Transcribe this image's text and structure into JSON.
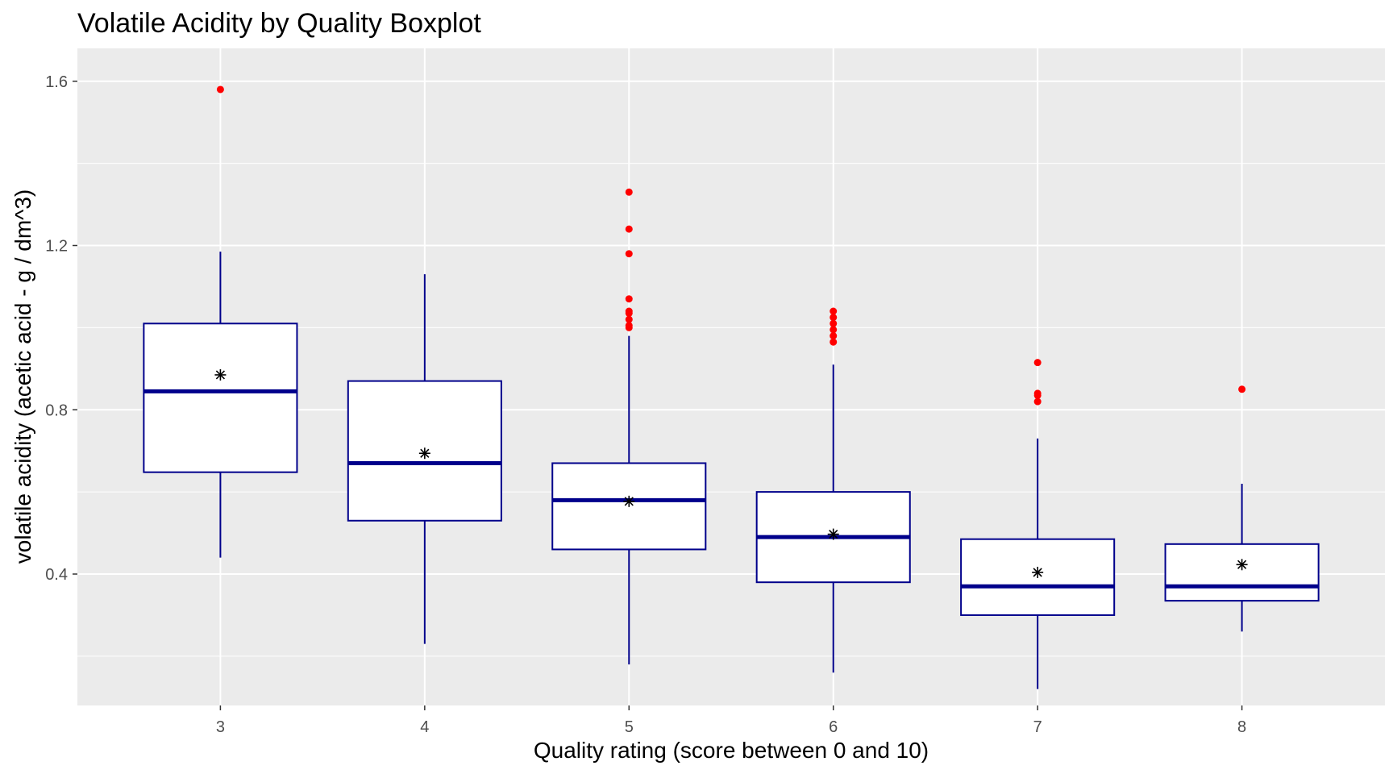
{
  "chart_data": {
    "type": "boxplot",
    "title": "Volatile Acidity by Quality Boxplot",
    "xlabel": "Quality rating (score between 0 and 10)",
    "ylabel": "volatile acidity (acetic acid - g / dm^3)",
    "categories": [
      "3",
      "4",
      "5",
      "6",
      "7",
      "8"
    ],
    "ylim": [
      0.08,
      1.68
    ],
    "yticks": [
      0.4,
      0.8,
      1.2,
      1.6
    ],
    "ytick_labels": [
      "0.4",
      "0.8",
      "1.2",
      "1.6"
    ],
    "grid": true,
    "boxes": [
      {
        "category": "3",
        "whisker_low": 0.44,
        "q1": 0.648,
        "median": 0.845,
        "q3": 1.01,
        "whisker_high": 1.185,
        "mean": 0.885,
        "outliers": [
          1.58
        ]
      },
      {
        "category": "4",
        "whisker_low": 0.23,
        "q1": 0.53,
        "median": 0.67,
        "q3": 0.87,
        "whisker_high": 1.13,
        "mean": 0.694,
        "outliers": []
      },
      {
        "category": "5",
        "whisker_low": 0.18,
        "q1": 0.46,
        "median": 0.58,
        "q3": 0.67,
        "whisker_high": 0.98,
        "mean": 0.577,
        "outliers": [
          1.33,
          1.24,
          1.18,
          1.07,
          1.04,
          1.035,
          1.02,
          1.005,
          1.0
        ]
      },
      {
        "category": "6",
        "whisker_low": 0.16,
        "q1": 0.38,
        "median": 0.49,
        "q3": 0.6,
        "whisker_high": 0.91,
        "mean": 0.497,
        "outliers": [
          1.04,
          1.025,
          1.01,
          0.995,
          0.98,
          0.965
        ]
      },
      {
        "category": "7",
        "whisker_low": 0.12,
        "q1": 0.3,
        "median": 0.37,
        "q3": 0.485,
        "whisker_high": 0.73,
        "mean": 0.404,
        "outliers": [
          0.915,
          0.84,
          0.835,
          0.82
        ]
      },
      {
        "category": "8",
        "whisker_low": 0.26,
        "q1": 0.335,
        "median": 0.37,
        "q3": 0.473,
        "whisker_high": 0.62,
        "mean": 0.423,
        "outliers": [
          0.85
        ]
      }
    ],
    "colors": {
      "panel": "#ebebeb",
      "grid": "#ffffff",
      "box_line": "#00008b",
      "box_fill": "#ffffff",
      "outlier": "#ff0000",
      "mean_marker": "#000000"
    }
  }
}
